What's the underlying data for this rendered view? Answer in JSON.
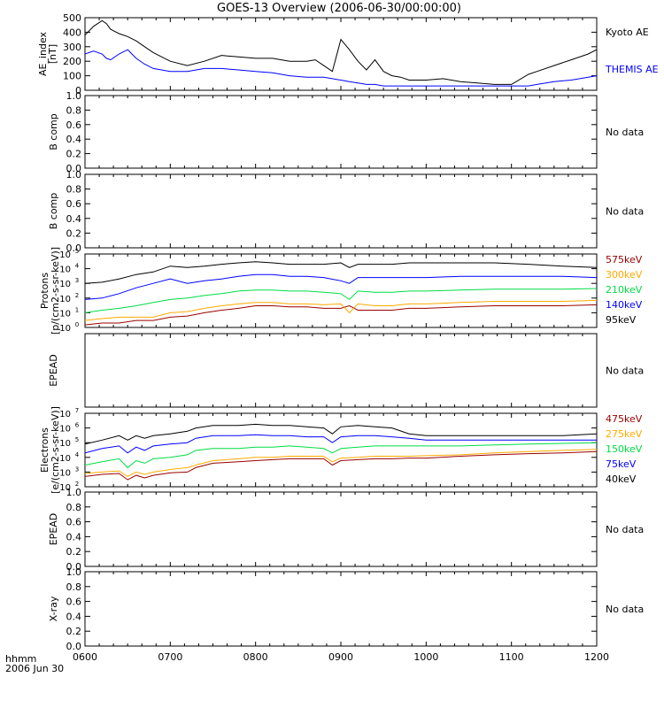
{
  "title": "GOES-13 Overview (2006-06-30/00:00:00)",
  "x_axis": {
    "ticks": [
      "0600",
      "0700",
      "0800",
      "0900",
      "1000",
      "1100",
      "1200"
    ],
    "corner_label_1": "hhmm",
    "corner_label_2": "2006 Jun 30"
  },
  "colors": {
    "black": "#000000",
    "blue": "#0000ff",
    "green": "#00dd44",
    "orange": "#ffaa00",
    "darkred": "#990000"
  },
  "chart_data": [
    {
      "id": "ae",
      "type": "line",
      "ylabel": "AE_index [nT]",
      "ylim": [
        0,
        500
      ],
      "yticks": [
        "0",
        "100",
        "200",
        "300",
        "400",
        "500"
      ],
      "x_hours": [
        6.0,
        6.1,
        6.2,
        6.25,
        6.3,
        6.4,
        6.5,
        6.6,
        6.7,
        6.8,
        7.0,
        7.2,
        7.4,
        7.6,
        7.8,
        8.0,
        8.2,
        8.4,
        8.6,
        8.7,
        8.8,
        8.9,
        9.0,
        9.1,
        9.2,
        9.3,
        9.4,
        9.5,
        9.6,
        9.7,
        9.8,
        10.0,
        10.2,
        10.4,
        10.6,
        10.8,
        11.0,
        11.2,
        11.3,
        11.5,
        11.7,
        11.9,
        12.0
      ],
      "series": [
        {
          "name": "Kyoto AE",
          "color": "#000000",
          "values": [
            380,
            440,
            480,
            460,
            420,
            390,
            370,
            340,
            300,
            260,
            200,
            170,
            200,
            240,
            230,
            220,
            220,
            200,
            200,
            210,
            170,
            130,
            350,
            280,
            200,
            140,
            210,
            130,
            100,
            90,
            70,
            70,
            80,
            60,
            50,
            40,
            40,
            110,
            130,
            170,
            210,
            250,
            280
          ]
        },
        {
          "name": "THEMIS AE",
          "color": "#0000ff",
          "values": [
            250,
            270,
            250,
            220,
            210,
            250,
            280,
            220,
            180,
            150,
            130,
            130,
            150,
            150,
            140,
            130,
            120,
            100,
            90,
            90,
            90,
            80,
            70,
            60,
            50,
            40,
            40,
            30,
            30,
            30,
            30,
            30,
            30,
            30,
            30,
            30,
            30,
            30,
            40,
            60,
            70,
            90,
            100
          ]
        }
      ]
    },
    {
      "id": "bcomp1",
      "type": "line",
      "ylabel": "B comp",
      "ylim": [
        0,
        1
      ],
      "yticks": [
        "0.0",
        "0.2",
        "0.4",
        "0.6",
        "0.8",
        "1.0"
      ],
      "no_data_label": "No data",
      "series": []
    },
    {
      "id": "bcomp2",
      "type": "line",
      "ylabel": "B comp",
      "ylim": [
        0,
        1
      ],
      "yticks": [
        "0.0",
        "0.2",
        "0.4",
        "0.6",
        "0.8",
        "1.0"
      ],
      "no_data_label": "No data",
      "series": []
    },
    {
      "id": "protons",
      "type": "line",
      "scale": "log",
      "ylabel_1": "Protons",
      "ylabel_2": "[p/(cm2-s-sr-keV)]",
      "ylim_exp": [
        0,
        5
      ],
      "ytick_exps": [
        0,
        1,
        2,
        3,
        4,
        5
      ],
      "x_hours": [
        6.0,
        6.2,
        6.4,
        6.6,
        6.8,
        7.0,
        7.2,
        7.4,
        7.6,
        7.8,
        8.0,
        8.2,
        8.4,
        8.6,
        8.8,
        9.0,
        9.1,
        9.2,
        9.4,
        9.6,
        9.8,
        10.0,
        10.4,
        10.8,
        11.2,
        11.6,
        12.0
      ],
      "series": [
        {
          "name": "575keV",
          "color": "#990000",
          "values": [
            1.5,
            2,
            2,
            3,
            3,
            5,
            6,
            10,
            15,
            20,
            30,
            30,
            25,
            25,
            20,
            20,
            30,
            15,
            15,
            15,
            20,
            20,
            25,
            30,
            30,
            30,
            35
          ]
        },
        {
          "name": "300keV",
          "color": "#ffaa00",
          "values": [
            3,
            4,
            5,
            5,
            5,
            10,
            12,
            20,
            30,
            40,
            50,
            50,
            40,
            40,
            35,
            40,
            10,
            40,
            30,
            30,
            40,
            40,
            50,
            60,
            60,
            60,
            70
          ]
        },
        {
          "name": "210keV",
          "color": "#00dd44",
          "values": [
            10,
            15,
            20,
            30,
            50,
            80,
            100,
            150,
            200,
            300,
            350,
            350,
            300,
            300,
            250,
            200,
            80,
            300,
            250,
            250,
            300,
            300,
            350,
            400,
            400,
            400,
            450
          ]
        },
        {
          "name": "140keV",
          "color": "#0000ff",
          "values": [
            80,
            100,
            200,
            500,
            1000,
            2000,
            1000,
            1500,
            2000,
            3000,
            4000,
            4000,
            3000,
            3000,
            2500,
            1500,
            1000,
            2500,
            2500,
            2500,
            2500,
            2500,
            3000,
            3000,
            3000,
            3000,
            2500
          ]
        },
        {
          "name": "95keV",
          "color": "#000000",
          "values": [
            1000,
            1200,
            2000,
            4000,
            6000,
            15000,
            12000,
            15000,
            20000,
            25000,
            30000,
            25000,
            20000,
            20000,
            20000,
            25000,
            12000,
            20000,
            20000,
            20000,
            25000,
            25000,
            25000,
            25000,
            20000,
            15000,
            12000
          ]
        }
      ]
    },
    {
      "id": "epead_p",
      "type": "line",
      "ylabel": "EPEAD",
      "ylim": [
        0,
        1
      ],
      "yticks": [],
      "no_data_label": "No data",
      "series": []
    },
    {
      "id": "electrons",
      "type": "line",
      "scale": "log",
      "ylabel_1": "Electrons",
      "ylabel_2": "[e/(cm2-s-sr-keV)]",
      "ylim_exp": [
        2,
        7
      ],
      "ytick_exps": [
        2,
        3,
        4,
        5,
        6,
        7
      ],
      "x_hours": [
        6.0,
        6.2,
        6.4,
        6.5,
        6.6,
        6.7,
        6.8,
        7.0,
        7.2,
        7.3,
        7.5,
        7.8,
        8.0,
        8.2,
        8.4,
        8.6,
        8.8,
        8.9,
        9.0,
        9.2,
        9.4,
        9.6,
        9.8,
        10.0,
        10.4,
        10.8,
        11.2,
        11.6,
        12.0
      ],
      "series": [
        {
          "name": "475keV",
          "color": "#990000",
          "values": [
            500,
            700,
            800,
            300,
            600,
            400,
            600,
            900,
            1000,
            2000,
            4000,
            5000,
            6000,
            7000,
            8000,
            8000,
            8000,
            3000,
            6000,
            7000,
            8000,
            8000,
            9000,
            9000,
            12000,
            15000,
            18000,
            20000,
            25000
          ]
        },
        {
          "name": "275keV",
          "color": "#ffaa00",
          "values": [
            800,
            1000,
            1200,
            500,
            1000,
            700,
            1000,
            1500,
            2000,
            3000,
            6000,
            8000,
            10000,
            10000,
            12000,
            12000,
            12000,
            5000,
            9000,
            10000,
            12000,
            12000,
            12000,
            13000,
            15000,
            20000,
            25000,
            30000,
            35000
          ]
        },
        {
          "name": "150keV",
          "color": "#00dd44",
          "values": [
            3000,
            5000,
            8000,
            2000,
            6000,
            4000,
            8000,
            10000,
            15000,
            30000,
            40000,
            40000,
            50000,
            50000,
            60000,
            50000,
            40000,
            20000,
            40000,
            50000,
            60000,
            60000,
            60000,
            60000,
            60000,
            70000,
            80000,
            90000,
            100000
          ]
        },
        {
          "name": "75keV",
          "color": "#0000ff",
          "values": [
            20000,
            40000,
            60000,
            20000,
            50000,
            30000,
            60000,
            80000,
            100000,
            200000,
            300000,
            300000,
            350000,
            300000,
            300000,
            250000,
            250000,
            100000,
            250000,
            300000,
            300000,
            250000,
            200000,
            150000,
            150000,
            150000,
            150000,
            150000,
            150000
          ]
        },
        {
          "name": "40keV",
          "color": "#000000",
          "values": [
            80000,
            150000,
            300000,
            150000,
            300000,
            200000,
            300000,
            400000,
            600000,
            1000000,
            1500000,
            1500000,
            1800000,
            1500000,
            1500000,
            1200000,
            1000000,
            400000,
            1200000,
            1500000,
            1200000,
            1000000,
            400000,
            300000,
            300000,
            300000,
            300000,
            300000,
            400000
          ]
        }
      ]
    },
    {
      "id": "epead_e",
      "type": "line",
      "ylabel": "EPEAD",
      "ylim": [
        0,
        1
      ],
      "yticks": [
        "0.0",
        "0.2",
        "0.4",
        "0.6",
        "0.8",
        "1.0"
      ],
      "no_data_label": "No data",
      "series": []
    },
    {
      "id": "xray",
      "type": "line",
      "ylabel": "X-ray",
      "ylim": [
        0,
        1
      ],
      "yticks": [
        "0.0",
        "0.2",
        "0.4",
        "0.6",
        "0.8",
        "1.0"
      ],
      "no_data_label": "No data",
      "series": []
    }
  ]
}
